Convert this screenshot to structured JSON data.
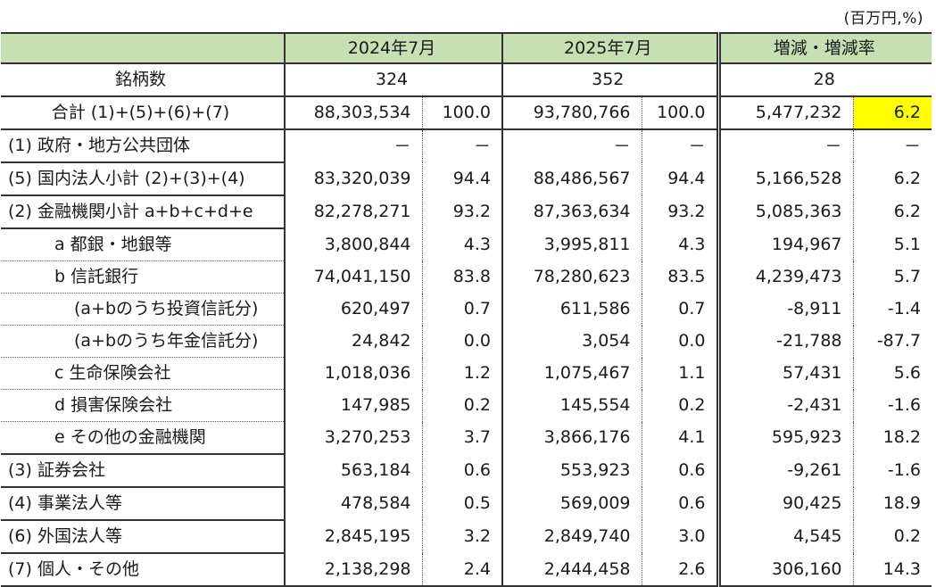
{
  "unit_note": "(百万円,%)",
  "header": {
    "label": "",
    "col_2024": "2024年7月",
    "col_2025": "2025年7月",
    "col_change": "増減・増減率"
  },
  "issues_row": {
    "label": "銘柄数",
    "v2024": "324",
    "v2025": "352",
    "change": "28"
  },
  "total_row": {
    "label": "合計 (1)+(5)+(6)+(7)",
    "v2024": "88,303,534",
    "p2024": "100.0",
    "v2025": "93,780,766",
    "p2025": "100.0",
    "change": "5,477,232",
    "rate": "6.2",
    "rate_highlight_color": "#ffff00"
  },
  "rows": [
    {
      "label": "(1) 政府・地方公共団体",
      "v2024": "－",
      "p2024": "－",
      "v2025": "－",
      "p2025": "－",
      "change": "－",
      "rate": "－"
    },
    {
      "label": "(5) 国内法人小計 (2)+(3)+(4)",
      "v2024": "83,320,039",
      "p2024": "94.4",
      "v2025": "88,486,567",
      "p2025": "94.4",
      "change": "5,166,528",
      "rate": "6.2"
    },
    {
      "label": "(2) 金融機関小計 a+b+c+d+e",
      "v2024": "82,278,271",
      "p2024": "93.2",
      "v2025": "87,363,634",
      "p2025": "93.2",
      "change": "5,085,363",
      "rate": "6.2"
    },
    {
      "label": "a 都銀・地銀等",
      "v2024": "3,800,844",
      "p2024": "4.3",
      "v2025": "3,995,811",
      "p2025": "4.3",
      "change": "194,967",
      "rate": "5.1"
    },
    {
      "label": "b 信託銀行",
      "v2024": "74,041,150",
      "p2024": "83.8",
      "v2025": "78,280,623",
      "p2025": "83.5",
      "change": "4,239,473",
      "rate": "5.7"
    },
    {
      "label": "(a+bのうち投資信託分)",
      "v2024": "620,497",
      "p2024": "0.7",
      "v2025": "611,586",
      "p2025": "0.7",
      "change": "-8,911",
      "rate": "-1.4"
    },
    {
      "label": "(a+bのうち年金信託分)",
      "v2024": "24,842",
      "p2024": "0.0",
      "v2025": "3,054",
      "p2025": "0.0",
      "change": "-21,788",
      "rate": "-87.7"
    },
    {
      "label": "c 生命保険会社",
      "v2024": "1,018,036",
      "p2024": "1.2",
      "v2025": "1,075,467",
      "p2025": "1.1",
      "change": "57,431",
      "rate": "5.6"
    },
    {
      "label": "d 損害保険会社",
      "v2024": "147,985",
      "p2024": "0.2",
      "v2025": "145,554",
      "p2025": "0.2",
      "change": "-2,431",
      "rate": "-1.6"
    },
    {
      "label": "e その他の金融機関",
      "v2024": "3,270,253",
      "p2024": "3.7",
      "v2025": "3,866,176",
      "p2025": "4.1",
      "change": "595,923",
      "rate": "18.2"
    },
    {
      "label": "(3) 証券会社",
      "v2024": "563,184",
      "p2024": "0.6",
      "v2025": "553,923",
      "p2025": "0.6",
      "change": "-9,261",
      "rate": "-1.6"
    },
    {
      "label": "(4) 事業法人等",
      "v2024": "478,584",
      "p2024": "0.5",
      "v2025": "569,009",
      "p2025": "0.6",
      "change": "90,425",
      "rate": "18.9"
    },
    {
      "label": "(6) 外国法人等",
      "v2024": "2,845,195",
      "p2024": "3.2",
      "v2025": "2,849,740",
      "p2025": "3.0",
      "change": "4,545",
      "rate": "0.2"
    },
    {
      "label": "(7) 個人・その他",
      "v2024": "2,138,298",
      "p2024": "2.4",
      "v2025": "2,444,458",
      "p2025": "2.6",
      "change": "306,160",
      "rate": "14.3"
    }
  ],
  "colors": {
    "header_bg": "#c6e0b4",
    "highlight": "#ffff00",
    "border": "#333333"
  }
}
